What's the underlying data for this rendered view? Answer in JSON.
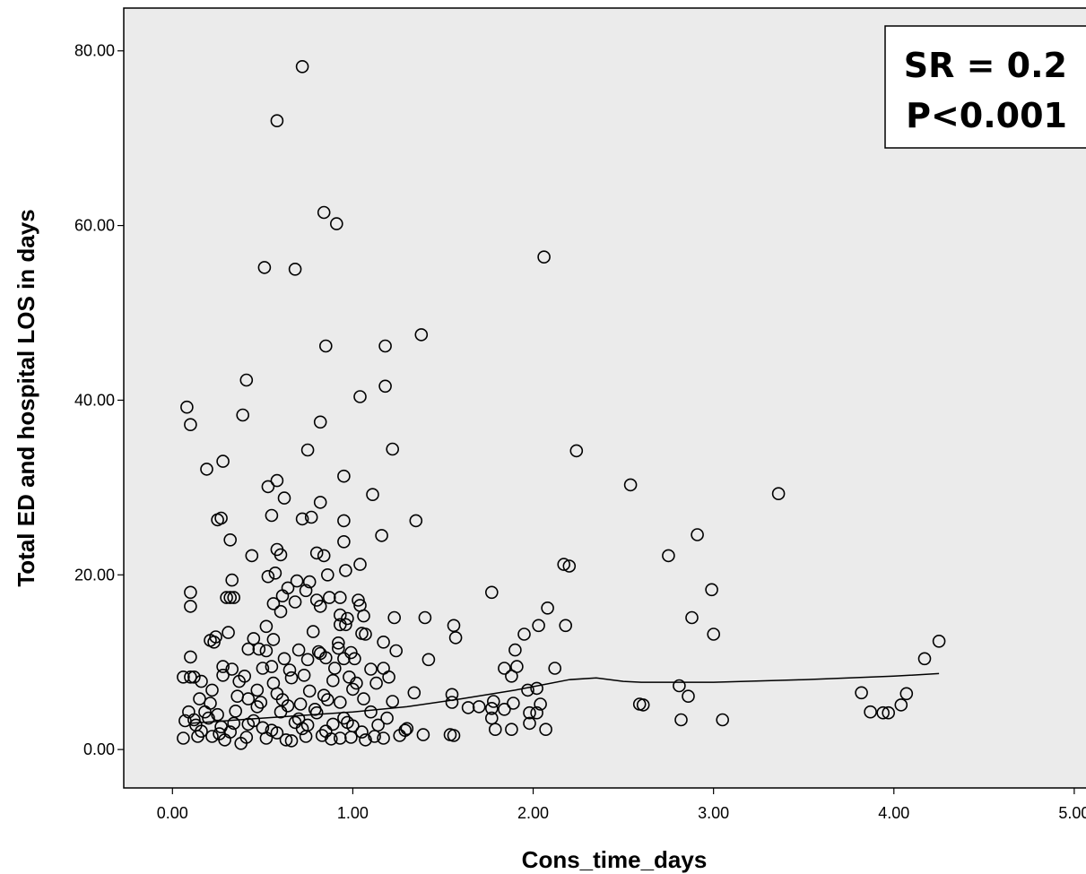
{
  "chart_data": {
    "type": "scatter",
    "xlabel": "Cons_time_days",
    "ylabel": "Total ED and hospital LOS in days",
    "xlim": [
      -0.27,
      5.1
    ],
    "ylim": [
      -4.4,
      84.9
    ],
    "x_ticks": [
      0,
      1,
      2,
      3,
      4,
      5
    ],
    "x_tick_labels": [
      "0.00",
      "1.00",
      "2.00",
      "3.00",
      "4.00",
      "5.00"
    ],
    "y_ticks": [
      0,
      20,
      40,
      60,
      80
    ],
    "y_tick_labels": [
      "0.00",
      "20.00",
      "40.00",
      "60.00",
      "80.00"
    ],
    "grid": false,
    "annotation": {
      "lines": [
        "SR = 0.2",
        "P<0.001"
      ],
      "placement": "top-right"
    },
    "colors": {
      "plot_background": "#ebebeb",
      "marker": "#000000",
      "line": "#000000"
    },
    "marker": "open-circle",
    "series": [
      {
        "type": "scatter",
        "points": [
          [
            0.72,
            78.2
          ],
          [
            0.58,
            72.0
          ],
          [
            0.84,
            61.5
          ],
          [
            0.91,
            60.2
          ],
          [
            2.06,
            56.4
          ],
          [
            0.51,
            55.2
          ],
          [
            0.68,
            55.0
          ],
          [
            1.38,
            47.5
          ],
          [
            0.85,
            46.2
          ],
          [
            1.18,
            46.2
          ],
          [
            0.41,
            42.3
          ],
          [
            1.18,
            41.6
          ],
          [
            1.04,
            40.4
          ],
          [
            0.08,
            39.2
          ],
          [
            0.39,
            38.3
          ],
          [
            0.82,
            37.5
          ],
          [
            0.1,
            37.2
          ],
          [
            1.22,
            34.4
          ],
          [
            0.75,
            34.3
          ],
          [
            2.24,
            34.2
          ],
          [
            0.28,
            33.0
          ],
          [
            0.19,
            32.1
          ],
          [
            0.95,
            31.3
          ],
          [
            0.58,
            30.8
          ],
          [
            0.53,
            30.1
          ],
          [
            2.54,
            30.3
          ],
          [
            3.36,
            29.3
          ],
          [
            1.11,
            29.2
          ],
          [
            0.62,
            28.8
          ],
          [
            0.82,
            28.3
          ],
          [
            0.55,
            26.8
          ],
          [
            0.72,
            26.4
          ],
          [
            0.77,
            26.6
          ],
          [
            0.25,
            26.3
          ],
          [
            0.27,
            26.5
          ],
          [
            0.95,
            26.2
          ],
          [
            1.35,
            26.2
          ],
          [
            0.32,
            24.0
          ],
          [
            1.16,
            24.5
          ],
          [
            2.91,
            24.6
          ],
          [
            0.95,
            23.8
          ],
          [
            0.58,
            22.9
          ],
          [
            0.6,
            22.3
          ],
          [
            0.8,
            22.5
          ],
          [
            0.84,
            22.2
          ],
          [
            0.44,
            22.2
          ],
          [
            2.75,
            22.2
          ],
          [
            2.17,
            21.2
          ],
          [
            2.2,
            21.0
          ],
          [
            1.04,
            21.2
          ],
          [
            0.96,
            20.5
          ],
          [
            0.53,
            19.8
          ],
          [
            0.57,
            20.2
          ],
          [
            0.86,
            20.0
          ],
          [
            0.33,
            19.4
          ],
          [
            0.69,
            19.3
          ],
          [
            0.76,
            19.2
          ],
          [
            0.64,
            18.5
          ],
          [
            0.74,
            18.2
          ],
          [
            2.99,
            18.3
          ],
          [
            0.1,
            18.0
          ],
          [
            1.77,
            18.0
          ],
          [
            0.61,
            17.6
          ],
          [
            0.3,
            17.4
          ],
          [
            0.34,
            17.4
          ],
          [
            0.87,
            17.4
          ],
          [
            0.93,
            17.4
          ],
          [
            0.32,
            17.4
          ],
          [
            0.8,
            17.1
          ],
          [
            1.03,
            17.1
          ],
          [
            0.56,
            16.7
          ],
          [
            0.82,
            16.4
          ],
          [
            0.1,
            16.4
          ],
          [
            0.68,
            16.9
          ],
          [
            1.04,
            16.5
          ],
          [
            2.08,
            16.2
          ],
          [
            0.6,
            15.8
          ],
          [
            1.06,
            15.3
          ],
          [
            0.93,
            15.4
          ],
          [
            1.23,
            15.1
          ],
          [
            1.4,
            15.1
          ],
          [
            2.88,
            15.1
          ],
          [
            0.97,
            15.0
          ],
          [
            0.52,
            14.1
          ],
          [
            0.93,
            14.3
          ],
          [
            0.96,
            14.3
          ],
          [
            1.56,
            14.2
          ],
          [
            2.03,
            14.2
          ],
          [
            2.18,
            14.2
          ],
          [
            0.78,
            13.5
          ],
          [
            0.31,
            13.4
          ],
          [
            1.05,
            13.3
          ],
          [
            1.07,
            13.2
          ],
          [
            1.95,
            13.2
          ],
          [
            3.0,
            13.2
          ],
          [
            0.24,
            12.9
          ],
          [
            0.21,
            12.5
          ],
          [
            0.23,
            12.3
          ],
          [
            0.56,
            12.6
          ],
          [
            0.45,
            12.7
          ],
          [
            0.92,
            12.2
          ],
          [
            1.17,
            12.3
          ],
          [
            1.57,
            12.8
          ],
          [
            4.25,
            12.4
          ],
          [
            0.42,
            11.5
          ],
          [
            0.52,
            11.3
          ],
          [
            0.7,
            11.4
          ],
          [
            0.81,
            11.2
          ],
          [
            0.82,
            11.0
          ],
          [
            0.92,
            11.6
          ],
          [
            0.99,
            11.1
          ],
          [
            1.24,
            11.3
          ],
          [
            0.48,
            11.5
          ],
          [
            1.9,
            11.4
          ],
          [
            0.1,
            10.6
          ],
          [
            0.62,
            10.4
          ],
          [
            0.75,
            10.3
          ],
          [
            0.85,
            10.5
          ],
          [
            0.95,
            10.4
          ],
          [
            1.01,
            10.4
          ],
          [
            1.42,
            10.3
          ],
          [
            4.17,
            10.4
          ],
          [
            0.28,
            9.5
          ],
          [
            0.33,
            9.2
          ],
          [
            0.5,
            9.3
          ],
          [
            0.55,
            9.5
          ],
          [
            0.65,
            9.1
          ],
          [
            0.9,
            9.3
          ],
          [
            1.1,
            9.2
          ],
          [
            1.17,
            9.3
          ],
          [
            1.84,
            9.3
          ],
          [
            1.91,
            9.5
          ],
          [
            2.12,
            9.3
          ],
          [
            0.06,
            8.3
          ],
          [
            0.1,
            8.3
          ],
          [
            0.12,
            8.3
          ],
          [
            0.28,
            8.5
          ],
          [
            0.4,
            8.4
          ],
          [
            0.66,
            8.2
          ],
          [
            0.73,
            8.5
          ],
          [
            0.98,
            8.3
          ],
          [
            1.2,
            8.3
          ],
          [
            1.88,
            8.4
          ],
          [
            0.16,
            7.8
          ],
          [
            0.37,
            7.8
          ],
          [
            0.56,
            7.6
          ],
          [
            0.89,
            7.9
          ],
          [
            1.02,
            7.6
          ],
          [
            1.13,
            7.6
          ],
          [
            1.55,
            6.3
          ],
          [
            2.02,
            7.0
          ],
          [
            2.81,
            7.3
          ],
          [
            0.22,
            6.8
          ],
          [
            0.47,
            6.8
          ],
          [
            0.76,
            6.7
          ],
          [
            1.0,
            6.9
          ],
          [
            1.34,
            6.5
          ],
          [
            1.97,
            6.8
          ],
          [
            3.82,
            6.5
          ],
          [
            4.07,
            6.4
          ],
          [
            2.86,
            6.1
          ],
          [
            0.15,
            5.8
          ],
          [
            0.42,
            5.8
          ],
          [
            0.61,
            5.7
          ],
          [
            0.86,
            5.7
          ],
          [
            1.06,
            5.8
          ],
          [
            1.55,
            5.4
          ],
          [
            1.78,
            5.5
          ],
          [
            1.89,
            5.3
          ],
          [
            2.04,
            5.2
          ],
          [
            2.59,
            5.2
          ],
          [
            2.61,
            5.1
          ],
          [
            4.04,
            5.1
          ],
          [
            0.21,
            5.3
          ],
          [
            0.49,
            5.4
          ],
          [
            0.71,
            5.2
          ],
          [
            0.93,
            5.4
          ],
          [
            1.22,
            5.5
          ],
          [
            1.64,
            4.8
          ],
          [
            1.7,
            4.9
          ],
          [
            1.77,
            4.7
          ],
          [
            1.84,
            4.6
          ],
          [
            1.98,
            4.2
          ],
          [
            2.02,
            4.2
          ],
          [
            3.87,
            4.3
          ],
          [
            3.94,
            4.2
          ],
          [
            3.97,
            4.2
          ],
          [
            0.09,
            4.3
          ],
          [
            0.18,
            4.3
          ],
          [
            0.35,
            4.4
          ],
          [
            0.6,
            4.3
          ],
          [
            0.8,
            4.2
          ],
          [
            1.1,
            4.3
          ],
          [
            0.07,
            3.3
          ],
          [
            0.12,
            3.4
          ],
          [
            0.2,
            3.6
          ],
          [
            0.45,
            3.3
          ],
          [
            0.7,
            3.5
          ],
          [
            0.95,
            3.6
          ],
          [
            1.19,
            3.6
          ],
          [
            1.77,
            3.6
          ],
          [
            2.82,
            3.4
          ],
          [
            3.05,
            3.4
          ],
          [
            1.98,
            3.0
          ],
          [
            0.13,
            2.8
          ],
          [
            0.27,
            2.6
          ],
          [
            0.5,
            2.5
          ],
          [
            0.75,
            2.8
          ],
          [
            1.0,
            2.7
          ],
          [
            1.3,
            2.4
          ],
          [
            1.29,
            2.2
          ],
          [
            1.79,
            2.3
          ],
          [
            1.88,
            2.3
          ],
          [
            2.07,
            2.3
          ],
          [
            0.16,
            2.1
          ],
          [
            0.32,
            2.0
          ],
          [
            0.55,
            2.2
          ],
          [
            0.85,
            2.1
          ],
          [
            1.05,
            2.0
          ],
          [
            0.06,
            1.3
          ],
          [
            0.14,
            1.5
          ],
          [
            0.22,
            1.5
          ],
          [
            0.29,
            1.1
          ],
          [
            0.41,
            1.4
          ],
          [
            0.52,
            1.3
          ],
          [
            0.63,
            1.1
          ],
          [
            0.74,
            1.5
          ],
          [
            0.88,
            1.2
          ],
          [
            0.99,
            1.4
          ],
          [
            1.07,
            1.1
          ],
          [
            1.17,
            1.3
          ],
          [
            1.26,
            1.6
          ],
          [
            1.39,
            1.7
          ],
          [
            1.54,
            1.7
          ],
          [
            1.56,
            1.6
          ],
          [
            0.38,
            0.7
          ],
          [
            0.66,
            1.0
          ],
          [
            0.93,
            1.3
          ],
          [
            0.26,
            1.8
          ],
          [
            0.58,
            1.9
          ],
          [
            0.83,
            1.6
          ],
          [
            1.12,
            1.5
          ],
          [
            0.34,
            3.0
          ],
          [
            0.68,
            3.1
          ],
          [
            0.89,
            2.9
          ],
          [
            0.47,
            4.9
          ],
          [
            0.64,
            5.0
          ],
          [
            0.79,
            4.6
          ],
          [
            0.36,
            6.1
          ],
          [
            0.58,
            6.4
          ],
          [
            0.84,
            6.2
          ],
          [
            0.25,
            4.0
          ],
          [
            0.42,
            2.9
          ],
          [
            0.72,
            2.4
          ],
          [
            0.97,
            3.1
          ],
          [
            1.14,
            2.8
          ]
        ]
      },
      {
        "type": "line",
        "points": [
          [
            0.1,
            3.0
          ],
          [
            0.5,
            3.6
          ],
          [
            1.0,
            4.3
          ],
          [
            1.3,
            4.9
          ],
          [
            1.6,
            5.8
          ],
          [
            1.9,
            6.8
          ],
          [
            2.2,
            8.0
          ],
          [
            2.35,
            8.2
          ],
          [
            2.5,
            7.8
          ],
          [
            2.6,
            7.7
          ],
          [
            3.0,
            7.7
          ],
          [
            3.5,
            8.0
          ],
          [
            4.0,
            8.4
          ],
          [
            4.25,
            8.7
          ]
        ]
      }
    ]
  }
}
